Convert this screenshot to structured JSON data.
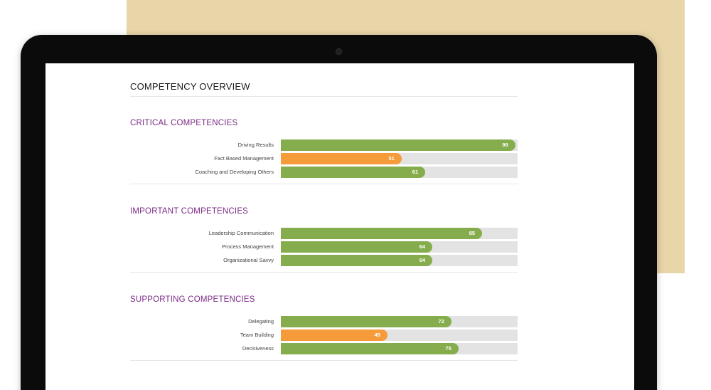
{
  "page": {
    "title": "COMPETENCY OVERVIEW"
  },
  "colors": {
    "section_title": "#7b2a86",
    "bar_green": "#86ad4d",
    "bar_orange": "#f59b3a",
    "track": "#e3e3e3",
    "backdrop": "#e8d5a8"
  },
  "sections": [
    {
      "title": "CRITICAL COMPETENCIES",
      "rows": [
        {
          "label": "Driving Results",
          "value": 99,
          "color": "green"
        },
        {
          "label": "Fact Based Management",
          "value": 51,
          "color": "orange"
        },
        {
          "label": "Coaching and Developing Others",
          "value": 61,
          "color": "green"
        }
      ]
    },
    {
      "title": "IMPORTANT COMPETENCIES",
      "rows": [
        {
          "label": "Leadership Communication",
          "value": 85,
          "color": "green"
        },
        {
          "label": "Process Management",
          "value": 64,
          "color": "green"
        },
        {
          "label": "Organizational Savvy",
          "value": 64,
          "color": "green"
        }
      ]
    },
    {
      "title": "SUPPORTING COMPETENCIES",
      "rows": [
        {
          "label": "Delegating",
          "value": 72,
          "color": "green"
        },
        {
          "label": "Team Building",
          "value": 45,
          "color": "orange"
        },
        {
          "label": "Decisiveness",
          "value": 75,
          "color": "green"
        }
      ]
    }
  ]
}
